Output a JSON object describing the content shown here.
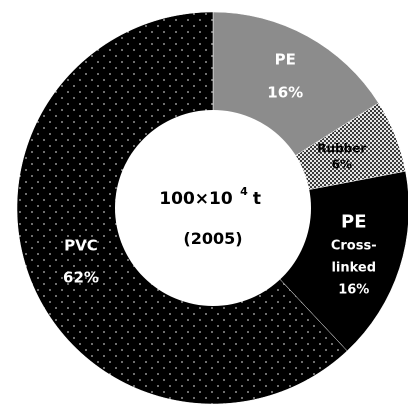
{
  "chart_data": {
    "type": "pie",
    "style": "donut",
    "center_text": {
      "line1": "100×10",
      "exponent": "4",
      "unit": "t",
      "line2": "(2005)"
    },
    "slices": [
      {
        "label": "PE",
        "value": 16,
        "value_label": "16%",
        "fill": "#8c8c8c",
        "pattern": "solid"
      },
      {
        "label": "Rubber",
        "value": 6,
        "value_label": "6%",
        "fill": "#c8c8c8",
        "pattern": "checker"
      },
      {
        "label": "PE Cross-linked",
        "label_lines": [
          "PE",
          "Cross-",
          "linked"
        ],
        "value": 16,
        "value_label": "16%",
        "fill": "#000000",
        "pattern": "solid"
      },
      {
        "label": "PVC",
        "value": 62,
        "value_label": "62%",
        "fill": "#000000",
        "pattern": "dots"
      }
    ]
  }
}
